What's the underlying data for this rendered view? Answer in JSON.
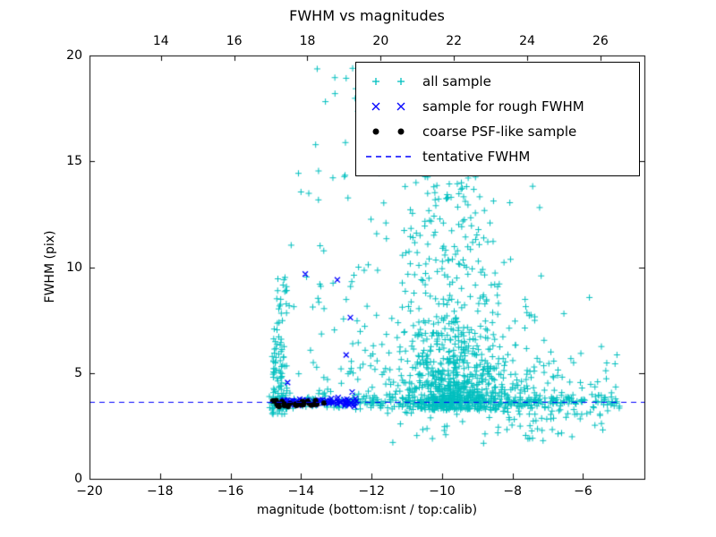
{
  "figure": {
    "title": "FWHM vs magnitudes",
    "xlabel": "magnitude (bottom:isnt / top:calib)",
    "ylabel": "FWHM (pix)"
  },
  "axes": {
    "x_bottom": {
      "min": -20,
      "max": -4.26,
      "ticks": [
        {
          "v": -20,
          "label": "−20"
        },
        {
          "v": -18,
          "label": "−18"
        },
        {
          "v": -16,
          "label": "−16"
        },
        {
          "v": -14,
          "label": "−14"
        },
        {
          "v": -12,
          "label": "−12"
        },
        {
          "v": -10,
          "label": "−10"
        },
        {
          "v": -8,
          "label": "−8"
        },
        {
          "v": -6,
          "label": "−6"
        }
      ]
    },
    "x_top": {
      "min": 12.05,
      "max": 27.2,
      "ticks": [
        {
          "v": 14,
          "label": "14"
        },
        {
          "v": 16,
          "label": "16"
        },
        {
          "v": 18,
          "label": "18"
        },
        {
          "v": 20,
          "label": "20"
        },
        {
          "v": 22,
          "label": "22"
        },
        {
          "v": 24,
          "label": "24"
        },
        {
          "v": 26,
          "label": "26"
        }
      ]
    },
    "y": {
      "min": 0,
      "max": 20,
      "ticks": [
        {
          "v": 0,
          "label": "0"
        },
        {
          "v": 5,
          "label": "5"
        },
        {
          "v": 10,
          "label": "10"
        },
        {
          "v": 15,
          "label": "15"
        },
        {
          "v": 20,
          "label": "20"
        }
      ]
    }
  },
  "legend": {
    "entries": [
      {
        "label": "all sample",
        "marker": "plus",
        "color": "#00bfbf"
      },
      {
        "label": "sample for rough FWHM",
        "marker": "x",
        "color": "#0000ff"
      },
      {
        "label": "coarse PSF-like sample",
        "marker": "dot",
        "color": "#000000"
      },
      {
        "label": "tentative FWHM",
        "marker": "dash",
        "color": "#0000ff"
      }
    ]
  },
  "chart_data": {
    "type": "scatter",
    "title": "FWHM vs magnitudes",
    "xlabel": "magnitude (bottom:isnt / top:calib)",
    "ylabel": "FWHM (pix)",
    "xlim": [
      -20,
      -4.26
    ],
    "x_top_lim": [
      12.05,
      27.2
    ],
    "ylim": [
      0,
      20
    ],
    "grid": false,
    "legend_position": "upper right",
    "tentative_fwhm_pix": 3.62,
    "seed": 1234567,
    "series": [
      {
        "name": "all sample",
        "marker": "plus",
        "color": "#00bfbf",
        "clusters": [
          {
            "count": 300,
            "x": {
              "type": "uniform",
              "a": -14.9,
              "b": -4.95
            },
            "y": {
              "type": "normal",
              "mean": 3.62,
              "sd": 0.15,
              "min": 3.2,
              "max": 4.1
            }
          },
          {
            "count": 640,
            "x": {
              "type": "normal",
              "mean": -9.65,
              "sd": 0.8,
              "min": -12.5,
              "max": -6.5
            },
            "y": {
              "type": "exp",
              "base": 3.25,
              "scale": 1.7,
              "cap": 14.6
            }
          },
          {
            "count": 190,
            "x": {
              "type": "normal",
              "mean": -9.4,
              "sd": 1.5,
              "min": -13.2,
              "max": -5.2
            },
            "y": {
              "type": "exp",
              "base": 3.2,
              "scale": 3.0,
              "cap": 14.8
            }
          },
          {
            "count": 85,
            "x": {
              "type": "normal",
              "mean": -9.85,
              "sd": 0.6,
              "min": -11.5,
              "max": -8.3
            },
            "y": {
              "type": "uniform",
              "a": 9.5,
              "b": 14.5
            }
          },
          {
            "count": 115,
            "x": {
              "type": "uniform",
              "a": -14.85,
              "b": -14.4
            },
            "y": {
              "type": "exp",
              "base": 3.05,
              "scale": 2.3,
              "cap": 9.6
            }
          },
          {
            "count": 65,
            "x": {
              "type": "uniform",
              "a": -14.35,
              "b": -11.4
            },
            "y": {
              "type": "exp",
              "base": 3.4,
              "scale": 2.6,
              "cap": 12.6
            }
          },
          {
            "count": 38,
            "x": {
              "type": "normal",
              "mean": -12.3,
              "sd": 1.1,
              "min": -14.6,
              "max": -10.2
            },
            "y": {
              "type": "uniform",
              "a": 8.0,
              "b": 17.3
            }
          },
          {
            "count": 9,
            "x": {
              "type": "uniform",
              "a": -13.9,
              "b": -12.2
            },
            "y": {
              "type": "uniform",
              "a": 17.0,
              "b": 19.7
            }
          },
          {
            "count": 85,
            "x": {
              "type": "uniform",
              "a": -8.3,
              "b": -4.95
            },
            "y": {
              "type": "normal",
              "mean": 3.9,
              "sd": 1.15,
              "min": 1.55,
              "max": 7.2
            }
          },
          {
            "count": 45,
            "x": {
              "type": "uniform",
              "a": -11.6,
              "b": -6.4
            },
            "y": {
              "type": "uniform",
              "a": 1.6,
              "b": 3.25
            }
          }
        ]
      },
      {
        "name": "sample for rough FWHM",
        "marker": "x",
        "color": "#0000ff",
        "clusters": [
          {
            "count": 70,
            "x": {
              "type": "uniform",
              "a": -14.55,
              "b": -12.42
            },
            "y": {
              "type": "normal",
              "mean": 3.62,
              "sd": 0.09,
              "min": 3.4,
              "max": 3.9
            }
          }
        ],
        "points": [
          [
            -13.88,
            9.68
          ],
          [
            -12.97,
            9.4
          ],
          [
            -12.6,
            7.62
          ],
          [
            -12.72,
            5.85
          ],
          [
            -14.38,
            4.55
          ],
          [
            -12.55,
            4.1
          ]
        ]
      },
      {
        "name": "coarse PSF-like sample",
        "marker": "dot",
        "color": "#000000",
        "clusters": [
          {
            "count": 34,
            "x": {
              "type": "uniform",
              "a": -14.82,
              "b": -13.28
            },
            "y": {
              "type": "normal",
              "mean": 3.54,
              "sd": 0.07,
              "min": 3.4,
              "max": 3.7
            }
          }
        ]
      },
      {
        "name": "tentative FWHM",
        "role": "hline",
        "y": 3.62,
        "color": "#0000ff",
        "linestyle": "dashed"
      }
    ]
  }
}
